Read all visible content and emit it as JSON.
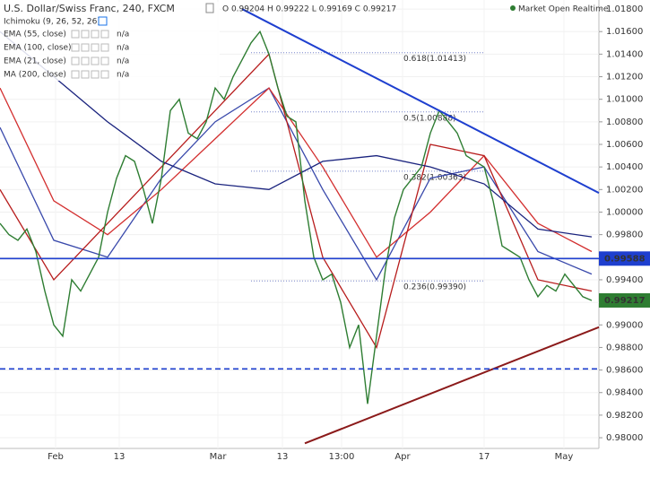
{
  "chart_data": {
    "type": "line",
    "title": "U.S. Dollar/Swiss Franc, 240, FXCM",
    "ohlc": "O 0.99204  H 0.99222  L 0.99169  C 0.99217",
    "status": "Market Open Realtime",
    "indicator": "Ichimoku (9, 26, 52, 26)",
    "xlim": [
      0,
      133.6
    ],
    "ylim": [
      0.97905,
      1.0188
    ],
    "xticks": [
      {
        "value": 12.4,
        "label": "Feb"
      },
      {
        "value": 26.6,
        "label": "13"
      },
      {
        "value": 48.6,
        "label": "Mar"
      },
      {
        "value": 63,
        "label": "13"
      },
      {
        "value": 76.2,
        "label": "13:00"
      },
      {
        "value": 89.8,
        "label": "Apr"
      },
      {
        "value": 108,
        "label": "17"
      },
      {
        "value": 125.8,
        "label": "May"
      }
    ],
    "yticks": [
      {
        "value": 0.98,
        "label": "0.98000"
      },
      {
        "value": 0.982,
        "label": "0.98200"
      },
      {
        "value": 0.984,
        "label": "0.98400"
      },
      {
        "value": 0.986,
        "label": "0.98600"
      },
      {
        "value": 0.988,
        "label": "0.98800"
      },
      {
        "value": 0.99,
        "label": "0.99000"
      },
      {
        "value": 0.992,
        "label": "0.99200"
      },
      {
        "value": 0.994,
        "label": "0.99400"
      },
      {
        "value": 0.996,
        "label": "0.99600"
      },
      {
        "value": 0.998,
        "label": "0.99800"
      },
      {
        "value": 1.0,
        "label": "1.00000"
      },
      {
        "value": 1.002,
        "label": "1.00200"
      },
      {
        "value": 1.004,
        "label": "1.00400"
      },
      {
        "value": 1.006,
        "label": "1.00600"
      },
      {
        "value": 1.008,
        "label": "1.00800"
      },
      {
        "value": 1.01,
        "label": "1.01000"
      },
      {
        "value": 1.012,
        "label": "1.01200"
      },
      {
        "value": 1.014,
        "label": "1.01400"
      },
      {
        "value": 1.016,
        "label": "1.01600"
      },
      {
        "value": 1.018,
        "label": "1.01800"
      }
    ],
    "price": {
      "color": "#2e7d32",
      "x": [
        0,
        2,
        4,
        6,
        8,
        10,
        12,
        14,
        16,
        18,
        20,
        22,
        24,
        26,
        28,
        30,
        32,
        34,
        36,
        38,
        40,
        42,
        44,
        46,
        48,
        50,
        52,
        54,
        56,
        58,
        60,
        62,
        64,
        66,
        68,
        70,
        72,
        74,
        76,
        78,
        80,
        82,
        84,
        86,
        88,
        90,
        92,
        94,
        96,
        98,
        100,
        102,
        104,
        106,
        108,
        110,
        112,
        114,
        116,
        118,
        120,
        122,
        124,
        126,
        128,
        130,
        132
      ],
      "values": [
        0.999,
        0.998,
        0.9975,
        0.9985,
        0.9965,
        0.993,
        0.99,
        0.989,
        0.994,
        0.993,
        0.9945,
        0.996,
        1.0,
        1.003,
        1.005,
        1.0045,
        1.002,
        0.999,
        1.003,
        1.009,
        1.01,
        1.007,
        1.0065,
        1.008,
        1.011,
        1.01,
        1.012,
        1.0135,
        1.015,
        1.016,
        1.014,
        1.011,
        1.0085,
        1.008,
        1.001,
        0.996,
        0.994,
        0.9945,
        0.992,
        0.988,
        0.99,
        0.983,
        0.989,
        0.995,
        0.9995,
        1.002,
        1.003,
        1.004,
        1.007,
        1.009,
        1.008,
        1.007,
        1.005,
        1.0045,
        1.004,
        1.001,
        0.997,
        0.9965,
        0.996,
        0.994,
        0.9925,
        0.9935,
        0.993,
        0.9945,
        0.9935,
        0.9925,
        0.99217
      ],
      "last_label": "0.99217"
    },
    "series": [
      {
        "name": "EMA (55, close)",
        "value_text": "n/a",
        "color": "#3949ab",
        "x": [
          0,
          12,
          24,
          36,
          48,
          60,
          72,
          84,
          96,
          108,
          120,
          132
        ],
        "values": [
          1.0075,
          0.9975,
          0.996,
          1.003,
          1.008,
          1.011,
          1.002,
          0.994,
          1.003,
          1.004,
          0.9965,
          0.9945
        ]
      },
      {
        "name": "EMA (100, close)",
        "value_text": "n/a",
        "color": "#d32f2f",
        "x": [
          0,
          12,
          24,
          36,
          48,
          60,
          72,
          84,
          96,
          108,
          120,
          132
        ],
        "values": [
          1.011,
          1.001,
          0.998,
          1.002,
          1.0065,
          1.011,
          1.004,
          0.996,
          1.0,
          1.005,
          0.999,
          0.9965
        ]
      },
      {
        "name": "EMA (21, close)",
        "value_text": "n/a",
        "color": "#b71c1c",
        "x": [
          0,
          12,
          24,
          36,
          48,
          60,
          72,
          84,
          96,
          108,
          120,
          132
        ],
        "values": [
          1.002,
          0.994,
          0.999,
          1.004,
          1.009,
          1.014,
          0.996,
          0.988,
          1.006,
          1.005,
          0.994,
          0.993
        ]
      },
      {
        "name": "MA (200, close)",
        "value_text": "n/a",
        "color": "#1a237e",
        "x": [
          0,
          12,
          24,
          36,
          48,
          60,
          72,
          84,
          96,
          108,
          120,
          132
        ],
        "values": [
          1.016,
          1.012,
          1.008,
          1.0045,
          1.0025,
          1.002,
          1.0045,
          1.005,
          1.004,
          1.0025,
          0.9985,
          0.9978
        ]
      }
    ],
    "trendlines": [
      {
        "color": "#1e3fcf",
        "x": [
          54,
          133.6
        ],
        "values": [
          1.018,
          1.0017
        ]
      },
      {
        "color": "#8b1a1a",
        "x": [
          68,
          133.6
        ],
        "values": [
          0.9795,
          0.9898
        ]
      }
    ],
    "levels": [
      {
        "value": 0.99588,
        "label": "0.99588",
        "color": "#1e3fcf",
        "dashed": false
      },
      {
        "value": 0.9861,
        "color": "#1e3fcf",
        "dashed": true
      }
    ],
    "fib": [
      {
        "value": 1.01413,
        "label": "0.618(1.01413)"
      },
      {
        "value": 1.00888,
        "label": "0.5(1.00888)"
      },
      {
        "value": 1.00363,
        "label": "0.382(1.00363)"
      },
      {
        "value": 0.9939,
        "label": "0.236(0.99390)"
      }
    ],
    "fib_x": [
      56,
      108
    ]
  }
}
